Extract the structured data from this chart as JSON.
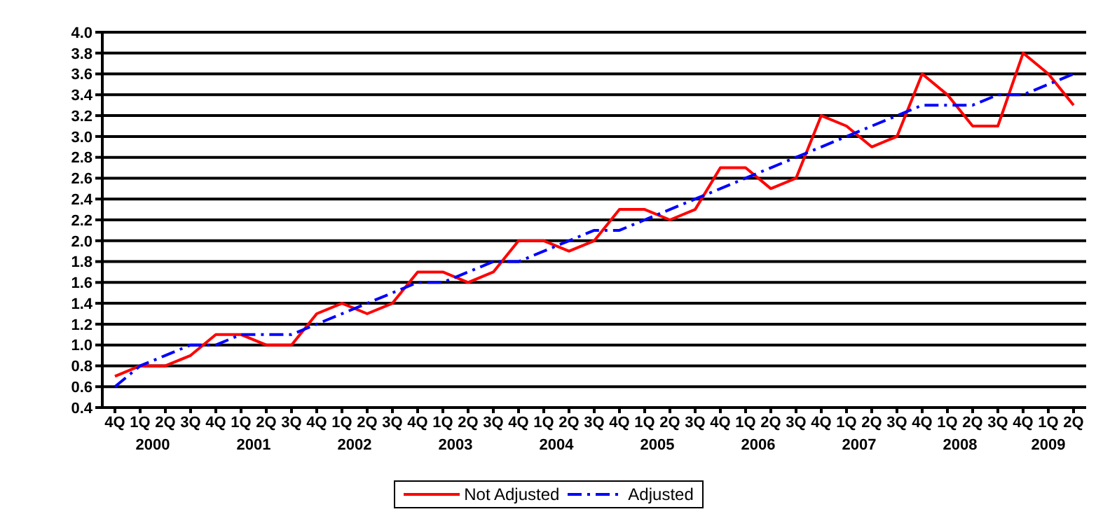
{
  "chart_data": {
    "type": "line",
    "categories": [
      "4Q",
      "1Q",
      "2Q",
      "3Q",
      "4Q",
      "1Q",
      "2Q",
      "3Q",
      "4Q",
      "1Q",
      "2Q",
      "3Q",
      "4Q",
      "1Q",
      "2Q",
      "3Q",
      "4Q",
      "1Q",
      "2Q",
      "3Q",
      "4Q",
      "1Q",
      "2Q",
      "3Q",
      "4Q",
      "1Q",
      "2Q",
      "3Q",
      "4Q",
      "1Q",
      "2Q",
      "3Q",
      "4Q",
      "1Q",
      "2Q",
      "3Q",
      "4Q",
      "1Q",
      "2Q"
    ],
    "annotations": [
      "2000",
      "2001",
      "2002",
      "2003",
      "2004",
      "2005",
      "2006",
      "2007",
      "2008",
      "2009"
    ],
    "series": [
      {
        "name": "Not Adjusted",
        "color": "#ff0000",
        "line_style": "solid",
        "values": [
          0.7,
          0.8,
          0.8,
          0.9,
          1.1,
          1.1,
          1.0,
          1.0,
          1.3,
          1.4,
          1.3,
          1.4,
          1.7,
          1.7,
          1.6,
          1.7,
          2.0,
          2.0,
          1.9,
          2.0,
          2.3,
          2.3,
          2.2,
          2.3,
          2.7,
          2.7,
          2.5,
          2.6,
          3.2,
          3.1,
          2.9,
          3.0,
          3.6,
          3.4,
          3.1,
          3.1,
          3.8,
          3.6,
          3.3
        ]
      },
      {
        "name": "Adjusted",
        "color": "#0000ff",
        "line_style": "dashed",
        "values": [
          0.6,
          0.8,
          0.9,
          1.0,
          1.0,
          1.1,
          1.1,
          1.1,
          1.2,
          1.3,
          1.4,
          1.5,
          1.6,
          1.6,
          1.7,
          1.8,
          1.8,
          1.9,
          2.0,
          2.1,
          2.1,
          2.2,
          2.3,
          2.4,
          2.5,
          2.6,
          2.7,
          2.8,
          2.9,
          3.0,
          3.1,
          3.2,
          3.3,
          3.3,
          3.3,
          3.4,
          3.4,
          3.5,
          3.6
        ]
      }
    ],
    "ylim": [
      0.4,
      4.0
    ],
    "yticks": [
      {
        "value": 0.4,
        "label": "0.4"
      },
      {
        "value": 0.6,
        "label": "0.6"
      },
      {
        "value": 0.8,
        "label": "0.8"
      },
      {
        "value": 1.0,
        "label": "1.0"
      },
      {
        "value": 1.2,
        "label": "1.2"
      },
      {
        "value": 1.4,
        "label": "1.4"
      },
      {
        "value": 1.6,
        "label": "1.6"
      },
      {
        "value": 1.8,
        "label": "1.8"
      },
      {
        "value": 2.0,
        "label": "2.0"
      },
      {
        "value": 2.2,
        "label": "2.2"
      },
      {
        "value": 2.4,
        "label": "2.4"
      },
      {
        "value": 2.6,
        "label": "2.6"
      },
      {
        "value": 2.8,
        "label": "2.8"
      },
      {
        "value": 3.0,
        "label": "3.0"
      },
      {
        "value": 3.2,
        "label": "3.2"
      },
      {
        "value": 3.4,
        "label": "3.4"
      },
      {
        "value": 3.6,
        "label": "3.6"
      },
      {
        "value": 3.8,
        "label": "3.8"
      },
      {
        "value": 4.0,
        "label": "4.0"
      }
    ],
    "grid": "y",
    "legend": "bottom",
    "marker": "none"
  }
}
